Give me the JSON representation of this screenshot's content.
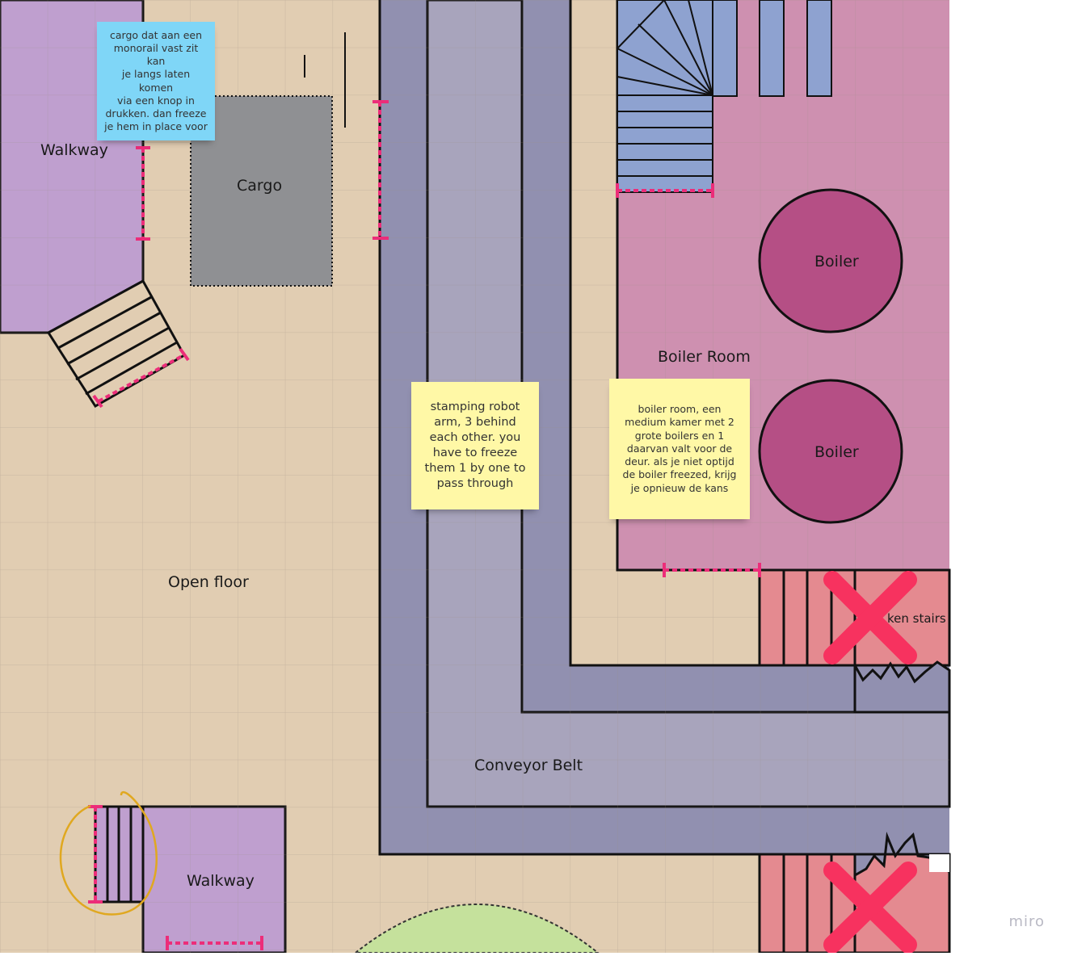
{
  "labels": {
    "walkway_top": "Walkway",
    "cargo": "Cargo",
    "open_floor": "Open floor",
    "conveyor_belt": "Conveyor Belt",
    "boiler_room": "Boiler Room",
    "boiler_1": "Boiler",
    "boiler_2": "Boiler",
    "walkway_bottom": "Walkway",
    "broken_stairs": "ken stairs"
  },
  "stickies": {
    "cargo_note": "cargo dat aan een\nmonorail vast zit kan\nje langs laten komen\nvia een knop in\ndrukken. dan freeze\nje hem in place voor",
    "robot_note": "stamping robot\narm, 3 behind\neach other. you\nhave to freeze\nthem 1 by one to\npass through",
    "boiler_note": "boiler room, een\nmedium kamer met 2\ngrote boilers en 1\ndaarvan valt voor de\ndeur. als je niet optijd\nde boiler freezed, krijg\nje opnieuw de kans"
  },
  "colors": {
    "floor": "#e1cdb2",
    "walkway": "#bf9fcf",
    "conveyor_outer": "#9190b0",
    "conveyor_inner": "#a8a4bc",
    "boiler_room": "#ce90b0",
    "boiler": "#b54f85",
    "stairs_blue": "#8ea2d0",
    "broken_stairs": "#e48a90",
    "cross": "#f7325f",
    "door": "#ec2d79",
    "cargo": "#8f9093",
    "highlight_circle": "#e0a820",
    "green_zone": "#c5e19c",
    "sticky_blue": "#7fd6f7",
    "sticky_yellow": "#fff8a6"
  },
  "brand": "miro"
}
